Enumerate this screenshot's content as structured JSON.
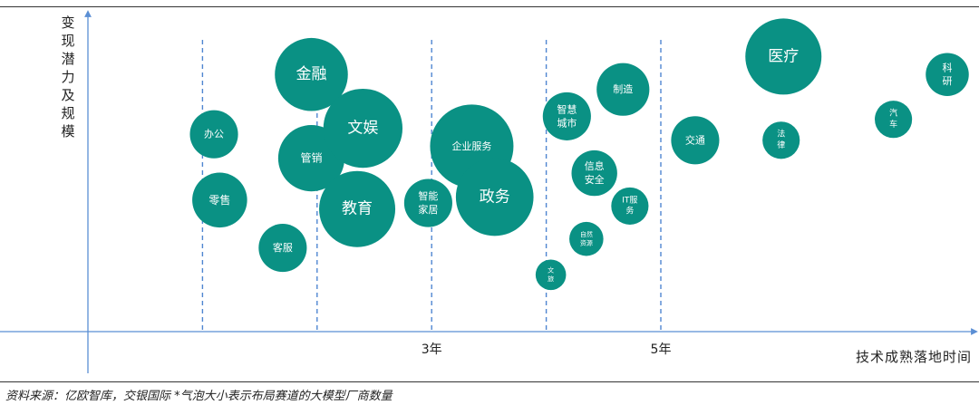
{
  "chart_data": {
    "type": "scatter",
    "xlabel": "技术成熟落地时间",
    "ylabel": "变现潜力及规模",
    "x_ticks": [
      {
        "value": 3,
        "label": "3年"
      },
      {
        "value": 5,
        "label": "5年"
      }
    ],
    "bubbles": [
      {
        "label": [
          "办公"
        ],
        "x": 1.1,
        "y": 6.6,
        "size": 1.0
      },
      {
        "label": [
          "零售"
        ],
        "x": 1.15,
        "y": 4.4,
        "size": 1.3
      },
      {
        "label": [
          "客服"
        ],
        "x": 1.7,
        "y": 2.8,
        "size": 1.0
      },
      {
        "label": [
          "金融"
        ],
        "x": 1.95,
        "y": 8.6,
        "size": 2.3
      },
      {
        "label": [
          "管销"
        ],
        "x": 1.95,
        "y": 5.8,
        "size": 1.9
      },
      {
        "label": [
          "文娱"
        ],
        "x": 2.4,
        "y": 6.8,
        "size": 2.7
      },
      {
        "label": [
          "教育"
        ],
        "x": 2.35,
        "y": 4.1,
        "size": 2.5
      },
      {
        "label": [
          "智能",
          "家居"
        ],
        "x": 2.97,
        "y": 4.3,
        "size": 1.0
      },
      {
        "label": [
          "企业服务"
        ],
        "x": 3.35,
        "y": 6.2,
        "size": 3.0
      },
      {
        "label": [
          "政务"
        ],
        "x": 3.55,
        "y": 4.5,
        "size": 2.6
      },
      {
        "label": [
          "智慧",
          "城市"
        ],
        "x": 4.18,
        "y": 7.2,
        "size": 1.0
      },
      {
        "label": [
          "制造"
        ],
        "x": 4.67,
        "y": 8.1,
        "size": 1.2
      },
      {
        "label": [
          "信息",
          "安全"
        ],
        "x": 4.42,
        "y": 5.3,
        "size": 0.9
      },
      {
        "label": [
          "IT服",
          "务"
        ],
        "x": 4.73,
        "y": 4.2,
        "size": 0.6
      },
      {
        "label": [
          "自然",
          "资源"
        ],
        "x": 4.35,
        "y": 3.1,
        "size": 0.5
      },
      {
        "label": [
          "文",
          "旅"
        ],
        "x": 4.04,
        "y": 1.9,
        "size": 0.4
      },
      {
        "label": [
          "交通"
        ],
        "x": 5.3,
        "y": 6.4,
        "size": 1.0
      },
      {
        "label": [
          "医疗"
        ],
        "x": 6.07,
        "y": 9.2,
        "size": 2.5
      },
      {
        "label": [
          "法",
          "律"
        ],
        "x": 6.05,
        "y": 6.4,
        "size": 0.6
      },
      {
        "label": [
          "汽",
          "车"
        ],
        "x": 7.03,
        "y": 7.1,
        "size": 0.6
      },
      {
        "label": [
          "科",
          "研"
        ],
        "x": 7.5,
        "y": 8.6,
        "size": 0.8
      }
    ],
    "color": "#0a9184",
    "axis_color": "#5b8fd4",
    "divider_color": "#4f86d1"
  },
  "source": "资料来源：亿欧智库，交银国际  *气泡大小表示布局赛道的大模型厂商数量"
}
